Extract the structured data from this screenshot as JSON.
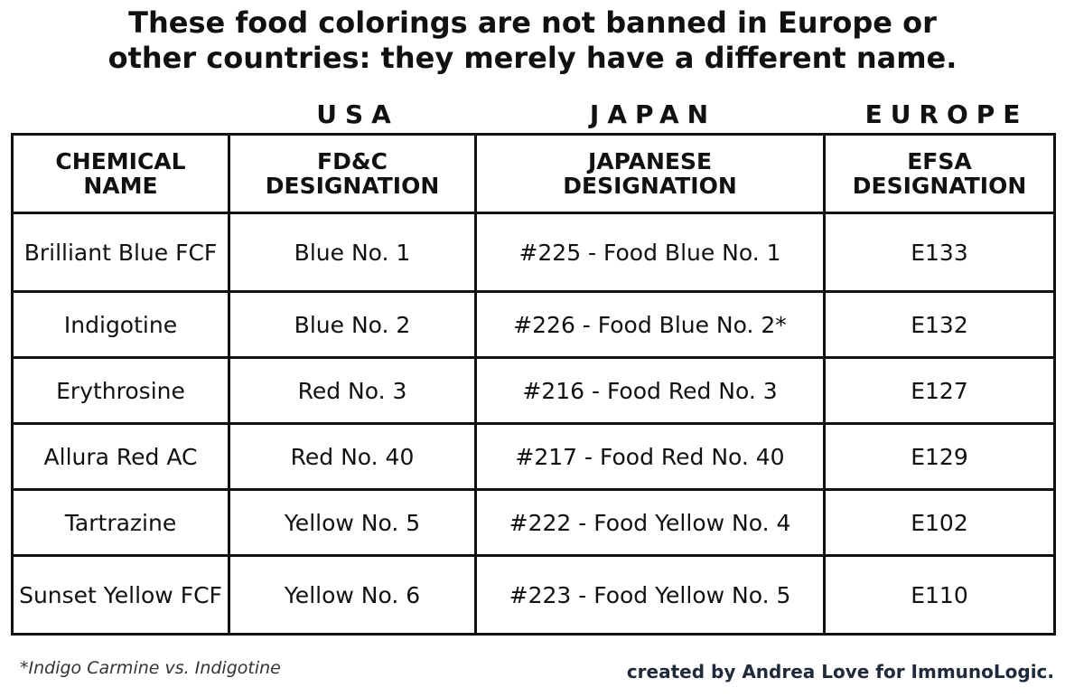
{
  "title": {
    "line1": "These food colorings are not banned in Europe or",
    "line2": "other countries: they merely have a different name."
  },
  "countries": {
    "usa": "USA",
    "japan": "JAPAN",
    "europe": "EUROPE"
  },
  "table": {
    "headers": [
      "CHEMICAL\nNAME",
      "FD&C\nDESIGNATION",
      "JAPANESE\nDESIGNATION",
      "EFSA\nDESIGNATION"
    ],
    "rows": [
      [
        "Brilliant Blue FCF",
        "Blue No. 1",
        "#225 - Food Blue No. 1",
        "E133"
      ],
      [
        "Indigotine",
        "Blue No. 2",
        "#226 - Food Blue No. 2*",
        "E132"
      ],
      [
        "Erythrosine",
        "Red No. 3",
        "#216 - Food Red No. 3",
        "E127"
      ],
      [
        "Allura Red AC",
        "Red No. 40",
        "#217 - Food Red No. 40",
        "E129"
      ],
      [
        "Tartrazine",
        "Yellow No. 5",
        "#222 - Food Yellow No. 4",
        "E102"
      ],
      [
        "Sunset Yellow FCF",
        "Yellow No. 6",
        "#223 - Food Yellow No. 5",
        "E110"
      ]
    ]
  },
  "footnote": "*Indigo Carmine vs. Indigotine",
  "credit": "created by Andrea Love for ImmunoLogic."
}
